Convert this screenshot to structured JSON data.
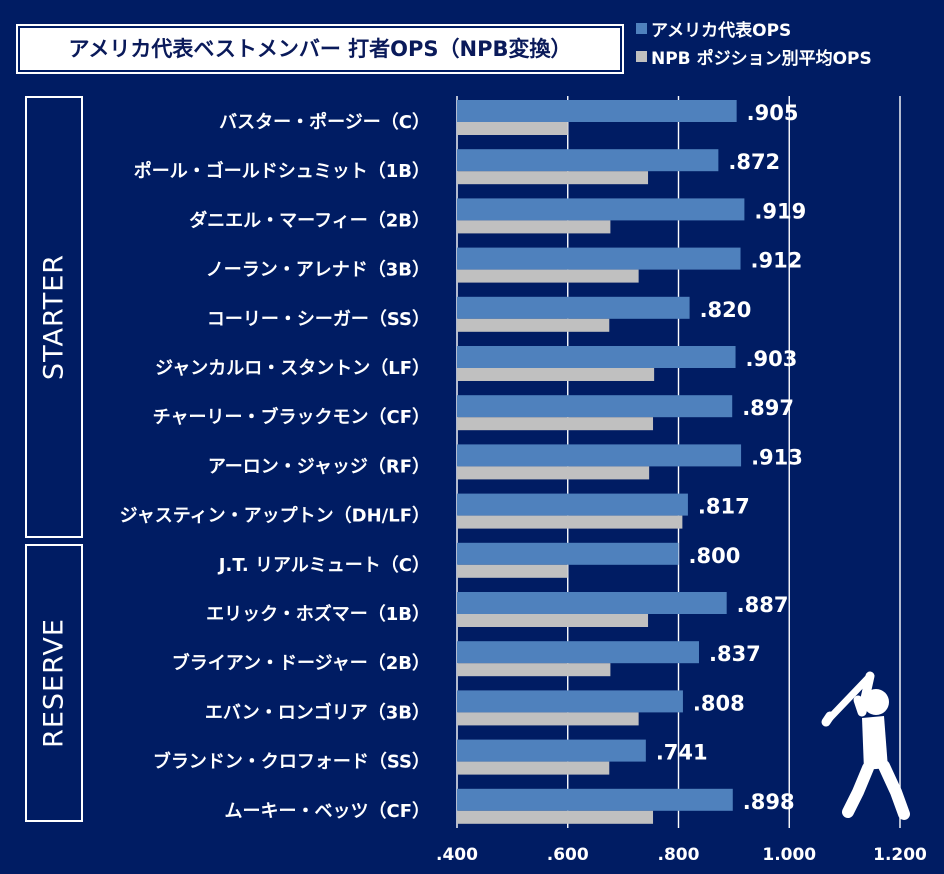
{
  "chart_data": {
    "type": "bar",
    "orientation": "horizontal",
    "title": "アメリカ代表ベストメンバー 打者OPS（NPB変換）",
    "categories": [
      "バスター・ポージー（C）",
      "ポール・ゴールドシュミット（1B）",
      "ダニエル・マーフィー（2B）",
      "ノーラン・アレナド（3B）",
      "コーリー・シーガー（SS）",
      "ジャンカルロ・スタントン（LF）",
      "チャーリー・ブラックモン（CF）",
      "アーロン・ジャッジ（RF）",
      "ジャスティン・アップトン（DH/LF）",
      "J.T. リアルミュート（C）",
      "エリック・ホズマー（1B）",
      "ブライアン・ドージャー（2B）",
      "エバン・ロンゴリア（3B）",
      "ブランドン・クロフォード（SS）",
      "ムーキー・ベッツ（CF）"
    ],
    "series": [
      {
        "name": "アメリカ代表OPS",
        "color": "#4f81bd",
        "values": [
          0.905,
          0.872,
          0.919,
          0.912,
          0.82,
          0.903,
          0.897,
          0.913,
          0.817,
          0.8,
          0.887,
          0.837,
          0.808,
          0.741,
          0.898
        ],
        "labels": [
          ".905",
          ".872",
          ".919",
          ".912",
          ".820",
          ".903",
          ".897",
          ".913",
          ".817",
          ".800",
          ".887",
          ".837",
          ".808",
          ".741",
          ".898"
        ]
      },
      {
        "name": "NPB ポジション別平均OPS",
        "color": "#c0c0c0",
        "values": [
          0.6,
          0.745,
          0.677,
          0.728,
          0.675,
          0.756,
          0.754,
          0.747,
          0.807,
          0.6,
          0.745,
          0.677,
          0.728,
          0.675,
          0.754
        ]
      }
    ],
    "xlim": [
      0.4,
      1.2
    ],
    "xticks": [
      0.4,
      0.6,
      0.8,
      1.0,
      1.2
    ],
    "xtick_labels": [
      ".400",
      ".600",
      ".800",
      "1.000",
      "1.200"
    ],
    "grid": "vertical",
    "legend_position": "top-right",
    "groups": [
      {
        "label": "STARTER",
        "count": 9
      },
      {
        "label": "RESERVE",
        "count": 6
      }
    ],
    "icon": "baseball-batter-icon"
  }
}
